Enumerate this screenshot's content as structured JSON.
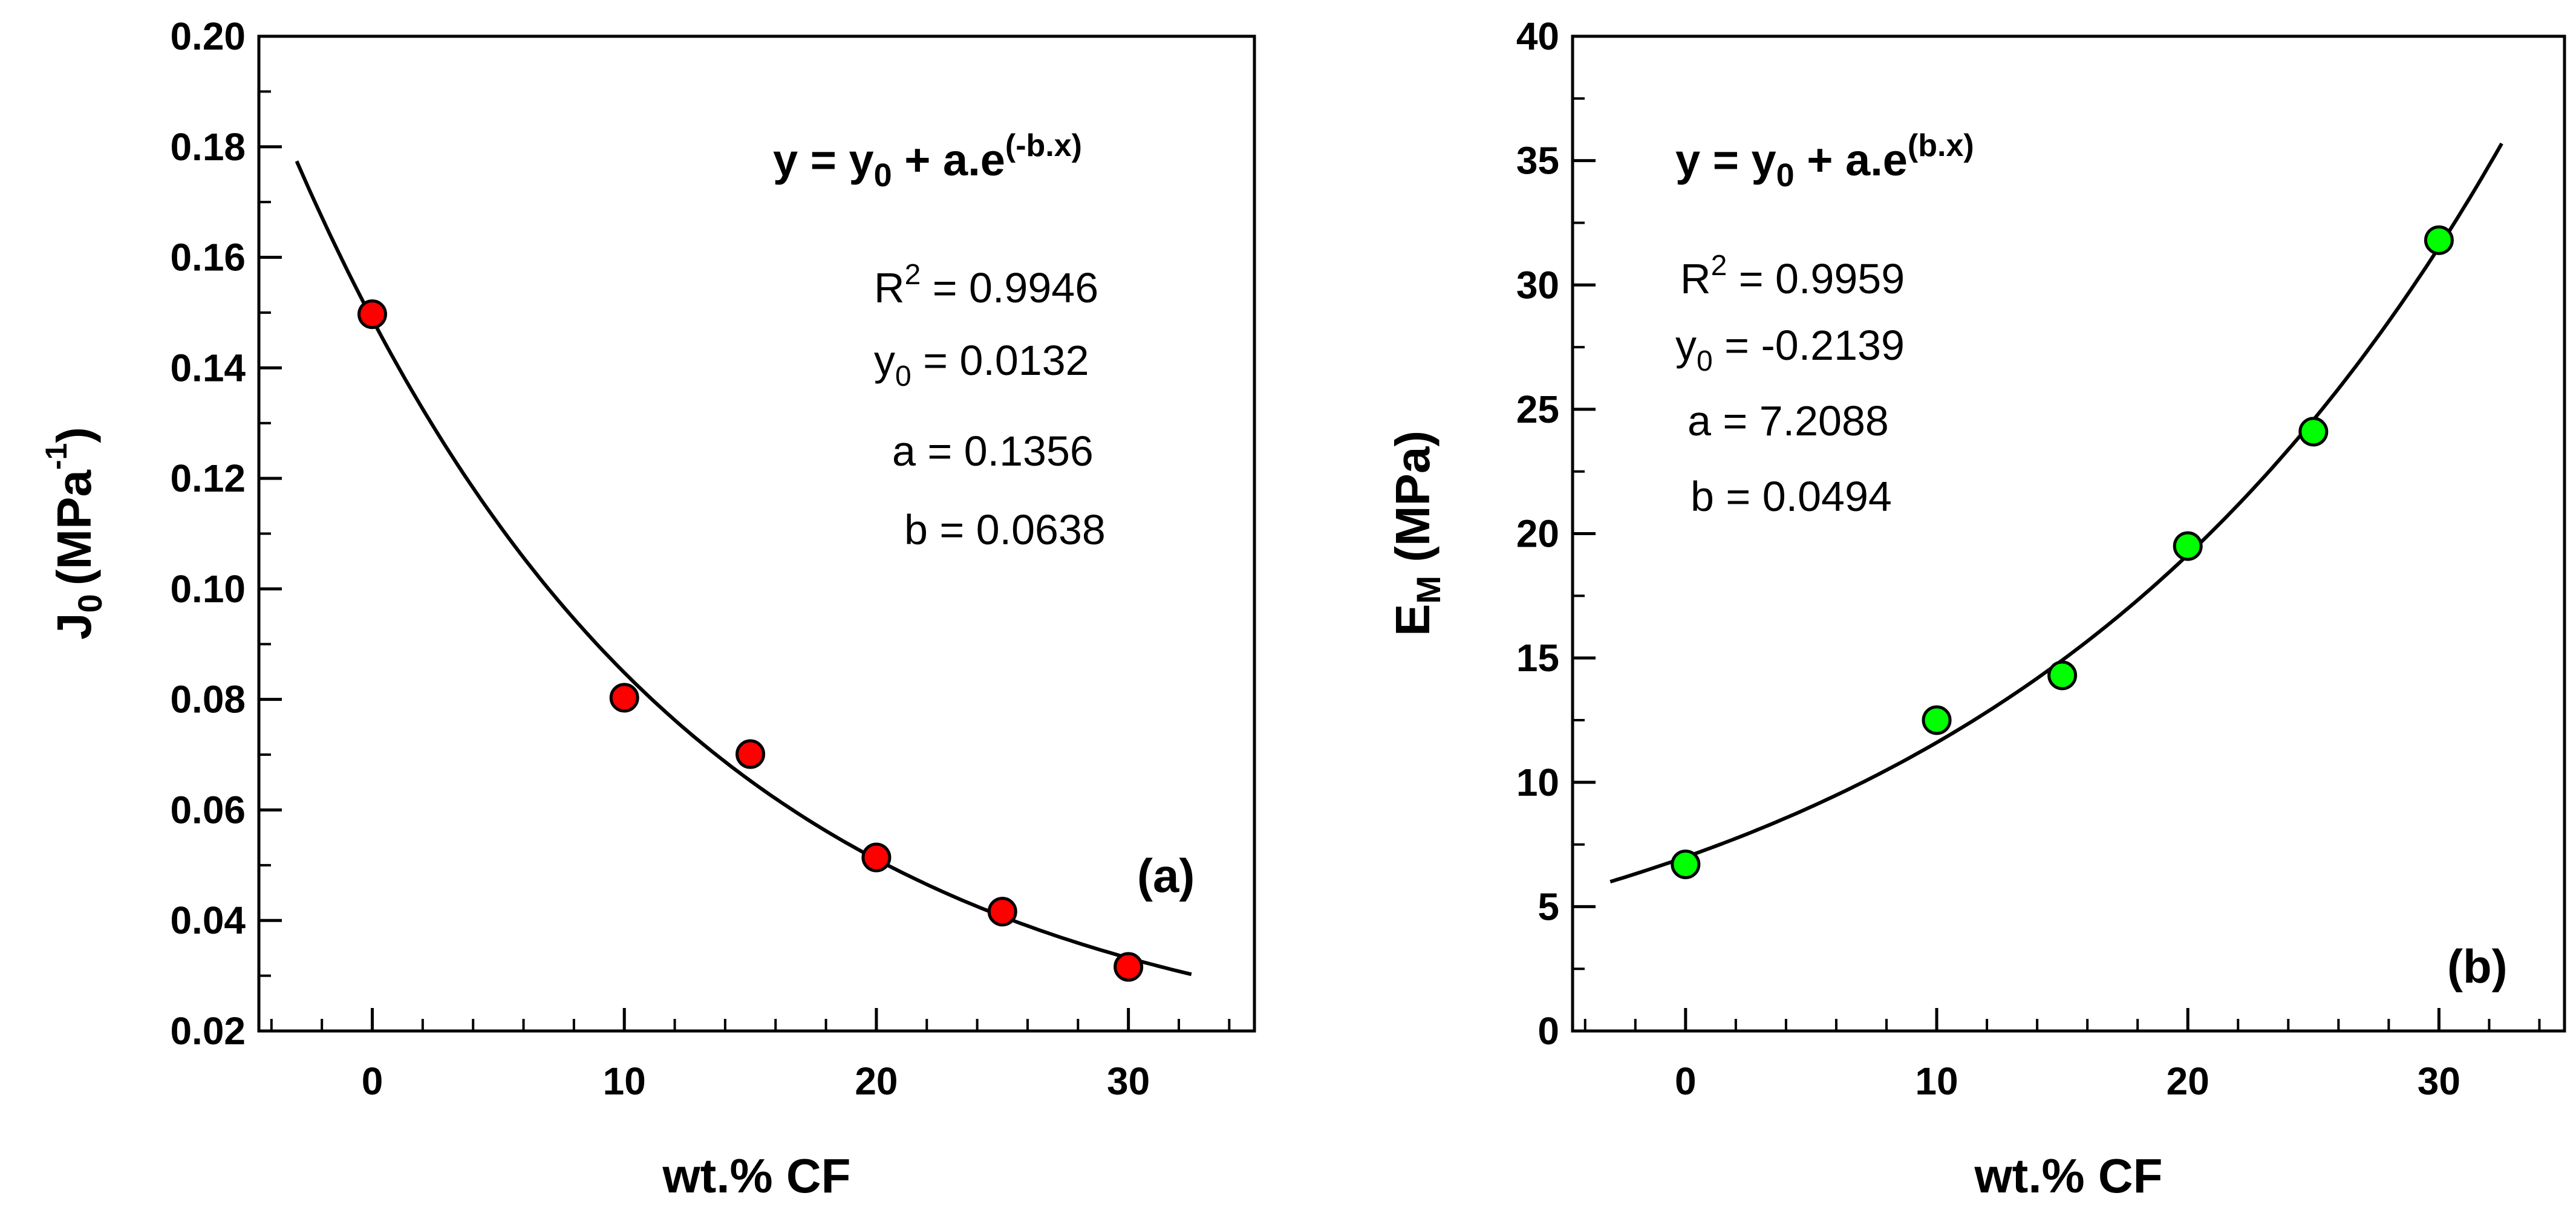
{
  "colors": {
    "marker_a": "#ff0000",
    "marker_b": "#00ff00",
    "line": "#000000",
    "background": "#ffffff"
  },
  "chart_data": [
    {
      "type": "scatter",
      "panel_label": "(a)",
      "xlabel": "wt.% CF",
      "ylabel": {
        "main": "J",
        "sub": "0",
        "unit": "(MPa",
        "sup": "-1",
        "close": ")"
      },
      "xlim": [
        -4.5,
        35
      ],
      "ylim": [
        0.02,
        0.2
      ],
      "xticks": [
        0,
        10,
        20,
        30
      ],
      "xtick_labels": [
        "0",
        "10",
        "20",
        "30"
      ],
      "yticks": [
        0.02,
        0.04,
        0.06,
        0.08,
        0.1,
        0.12,
        0.14,
        0.16,
        0.18,
        0.2
      ],
      "ytick_labels": [
        "0.02",
        "0.04",
        "0.06",
        "0.08",
        "0.10",
        "0.12",
        "0.14",
        "0.16",
        "0.18",
        "0.20"
      ],
      "series": [
        {
          "name": "data",
          "x": [
            0,
            10,
            15,
            20,
            25,
            30
          ],
          "y": [
            0.1497,
            0.0803,
            0.0701,
            0.0514,
            0.0416,
            0.0316
          ],
          "color": "#ff0000"
        }
      ],
      "fit": {
        "model": "y = y0 + a*exp(-b*x)",
        "y0": 0.0132,
        "a": 0.1356,
        "b": 0.0638,
        "x_range": [
          -3,
          32.5
        ]
      },
      "annotations": {
        "equation": {
          "lhs": "y = y",
          "sub": "0",
          "rhs": " + a.e",
          "sup": "(-b.x)"
        },
        "r2": {
          "pre": "R",
          "sup": "2",
          "post": " = 0.9946"
        },
        "y0": {
          "pre": "y",
          "sub": "0",
          "post": " = 0.0132"
        },
        "a": "a = 0.1356",
        "b": "b = 0.0638"
      }
    },
    {
      "type": "scatter",
      "panel_label": "(b)",
      "xlabel": "wt.% CF",
      "ylabel": {
        "main": "E",
        "sub": "M",
        "unit": " (MPa)"
      },
      "xlim": [
        -4.5,
        35
      ],
      "ylim": [
        0,
        40
      ],
      "xticks": [
        0,
        10,
        20,
        30
      ],
      "xtick_labels": [
        "0",
        "10",
        "20",
        "30"
      ],
      "yticks": [
        0,
        5,
        10,
        15,
        20,
        25,
        30,
        35,
        40
      ],
      "ytick_labels": [
        "0",
        "5",
        "10",
        "15",
        "20",
        "25",
        "30",
        "35",
        "40"
      ],
      "series": [
        {
          "name": "data",
          "x": [
            0,
            10,
            15,
            20,
            25,
            30
          ],
          "y": [
            6.7,
            12.5,
            14.3,
            19.5,
            24.1,
            31.8
          ],
          "color": "#00ff00"
        }
      ],
      "fit": {
        "model": "y = y0 + a*exp(b*x)",
        "y0": -0.2139,
        "a": 7.2088,
        "b": 0.0494,
        "x_range": [
          -3,
          32.5
        ]
      },
      "annotations": {
        "equation": {
          "lhs": "y = y",
          "sub": "0",
          "rhs": " + a.e",
          "sup": "(b.x)"
        },
        "r2": {
          "pre": "R",
          "sup": "2",
          "post": " = 0.9959"
        },
        "y0": {
          "pre": "y",
          "sub": "0",
          "post": " = -0.2139"
        },
        "a": "a = 7.2088",
        "b": "b = 0.0494"
      }
    }
  ]
}
